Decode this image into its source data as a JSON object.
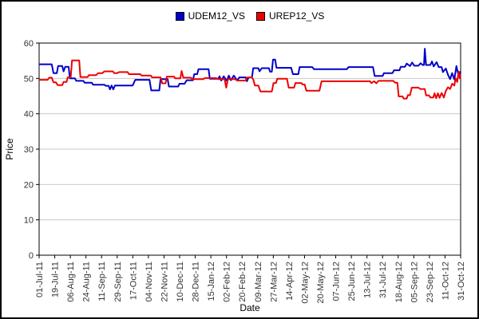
{
  "colors": {
    "series_blue": "#0000CC",
    "series_red": "#EE0000",
    "grid": "#C9C9C9",
    "frame": "#000000",
    "tick_text": "#333333"
  },
  "chart_data": {
    "type": "line",
    "title": "",
    "xlabel": "Date",
    "ylabel": "Price",
    "ylim": [
      0,
      60
    ],
    "yticks": [
      0,
      10,
      20,
      30,
      40,
      50,
      60
    ],
    "grid": "horizontal-light-gray",
    "legend_position": "top-center",
    "categories": [
      "01-Jul-11",
      "19-Jul-11",
      "06-Aug-11",
      "24-Aug-11",
      "11-Sep-11",
      "29-Sep-11",
      "17-Oct-11",
      "04-Nov-11",
      "22-Nov-11",
      "10-Dec-11",
      "28-Dec-11",
      "15-Jan-12",
      "02-Feb-12",
      "20-Feb-12",
      "09-Mar-12",
      "27-Mar-12",
      "14-Apr-12",
      "02-May-12",
      "20-May-12",
      "07-Jun-12",
      "25-Jun-12",
      "13-Jul-12",
      "31-Jul-12",
      "18-Aug-12",
      "05-Sep-12",
      "23-Sep-12",
      "11-Oct-12",
      "31-Oct-12"
    ],
    "x_axis_note": "points below use x as fraction 0-1 of axis span 01-Jul-11 to 31-Oct-12, y in Price units",
    "series": [
      {
        "name": "UDEM12_VS",
        "color": "#0000CC",
        "points": [
          [
            0,
            54
          ],
          [
            0.03,
            54
          ],
          [
            0.034,
            51.5
          ],
          [
            0.042,
            51.5
          ],
          [
            0.045,
            53.5
          ],
          [
            0.055,
            53.5
          ],
          [
            0.058,
            52
          ],
          [
            0.062,
            53.3
          ],
          [
            0.07,
            53.3
          ],
          [
            0.073,
            50
          ],
          [
            0.085,
            50
          ],
          [
            0.088,
            49.3
          ],
          [
            0.105,
            49.3
          ],
          [
            0.108,
            48.8
          ],
          [
            0.125,
            48.8
          ],
          [
            0.128,
            48.2
          ],
          [
            0.155,
            48.2
          ],
          [
            0.158,
            47.9
          ],
          [
            0.165,
            47.9
          ],
          [
            0.168,
            46.9
          ],
          [
            0.172,
            48
          ],
          [
            0.176,
            46.9
          ],
          [
            0.18,
            48
          ],
          [
            0.222,
            48
          ],
          [
            0.228,
            49.6
          ],
          [
            0.262,
            49.6
          ],
          [
            0.266,
            46.6
          ],
          [
            0.285,
            46.6
          ],
          [
            0.288,
            49.8
          ],
          [
            0.305,
            49.8
          ],
          [
            0.308,
            47.7
          ],
          [
            0.33,
            47.7
          ],
          [
            0.333,
            48.5
          ],
          [
            0.345,
            48.5
          ],
          [
            0.35,
            49.5
          ],
          [
            0.365,
            49.5
          ],
          [
            0.368,
            51.2
          ],
          [
            0.375,
            51.2
          ],
          [
            0.378,
            52.6
          ],
          [
            0.402,
            52.6
          ],
          [
            0.405,
            49.9
          ],
          [
            0.425,
            49.9
          ],
          [
            0.428,
            50.6
          ],
          [
            0.432,
            49.4
          ],
          [
            0.438,
            50.6
          ],
          [
            0.445,
            49.3
          ],
          [
            0.45,
            50.8
          ],
          [
            0.455,
            49.5
          ],
          [
            0.462,
            50.8
          ],
          [
            0.47,
            49.4
          ],
          [
            0.475,
            50.3
          ],
          [
            0.49,
            50.3
          ],
          [
            0.493,
            49.2
          ],
          [
            0.497,
            50.3
          ],
          [
            0.505,
            50.3
          ],
          [
            0.508,
            52.9
          ],
          [
            0.52,
            52.9
          ],
          [
            0.523,
            52
          ],
          [
            0.528,
            52.9
          ],
          [
            0.545,
            52.9
          ],
          [
            0.548,
            51.9
          ],
          [
            0.552,
            51.9
          ],
          [
            0.555,
            55.3
          ],
          [
            0.56,
            55.3
          ],
          [
            0.563,
            53
          ],
          [
            0.598,
            53
          ],
          [
            0.602,
            51.2
          ],
          [
            0.615,
            51.2
          ],
          [
            0.618,
            53.2
          ],
          [
            0.648,
            53.2
          ],
          [
            0.652,
            52.6
          ],
          [
            0.73,
            52.6
          ],
          [
            0.734,
            53.2
          ],
          [
            0.792,
            53.2
          ],
          [
            0.796,
            50.7
          ],
          [
            0.815,
            50.7
          ],
          [
            0.818,
            51.5
          ],
          [
            0.838,
            51.5
          ],
          [
            0.842,
            52.3
          ],
          [
            0.855,
            52.3
          ],
          [
            0.858,
            53.3
          ],
          [
            0.868,
            53.3
          ],
          [
            0.872,
            54.2
          ],
          [
            0.88,
            53.5
          ],
          [
            0.885,
            54.5
          ],
          [
            0.89,
            53.6
          ],
          [
            0.9,
            53.6
          ],
          [
            0.905,
            54.3
          ],
          [
            0.91,
            53.8
          ],
          [
            0.913,
            53.8
          ],
          [
            0.915,
            58.4
          ],
          [
            0.918,
            53.8
          ],
          [
            0.928,
            53.8
          ],
          [
            0.932,
            54.8
          ],
          [
            0.936,
            53.4
          ],
          [
            0.943,
            54.6
          ],
          [
            0.948,
            53.2
          ],
          [
            0.955,
            53.2
          ],
          [
            0.958,
            51.8
          ],
          [
            0.965,
            52.8
          ],
          [
            0.97,
            51
          ],
          [
            0.975,
            49.8
          ],
          [
            0.98,
            51.5
          ],
          [
            0.985,
            49.7
          ],
          [
            0.99,
            53.5
          ],
          [
            0.995,
            50.8
          ],
          [
            1,
            52
          ]
        ]
      },
      {
        "name": "UREP12_VS",
        "color": "#EE0000",
        "points": [
          [
            0,
            49.6
          ],
          [
            0.02,
            49.6
          ],
          [
            0.024,
            50.2
          ],
          [
            0.03,
            50.2
          ],
          [
            0.034,
            48.9
          ],
          [
            0.04,
            48.9
          ],
          [
            0.044,
            48.1
          ],
          [
            0.055,
            48.1
          ],
          [
            0.058,
            49
          ],
          [
            0.065,
            49
          ],
          [
            0.068,
            50.3
          ],
          [
            0.075,
            50.3
          ],
          [
            0.078,
            55.1
          ],
          [
            0.095,
            55.1
          ],
          [
            0.098,
            50.4
          ],
          [
            0.115,
            50.4
          ],
          [
            0.118,
            50.9
          ],
          [
            0.135,
            50.9
          ],
          [
            0.14,
            51.5
          ],
          [
            0.15,
            51.5
          ],
          [
            0.155,
            52
          ],
          [
            0.175,
            52
          ],
          [
            0.178,
            51.5
          ],
          [
            0.185,
            51.5
          ],
          [
            0.19,
            51.8
          ],
          [
            0.21,
            51.8
          ],
          [
            0.213,
            51.2
          ],
          [
            0.24,
            51.2
          ],
          [
            0.243,
            50.8
          ],
          [
            0.265,
            50.8
          ],
          [
            0.268,
            50.3
          ],
          [
            0.288,
            50.3
          ],
          [
            0.292,
            48.6
          ],
          [
            0.3,
            48.6
          ],
          [
            0.303,
            50.5
          ],
          [
            0.32,
            50.5
          ],
          [
            0.323,
            50
          ],
          [
            0.335,
            50
          ],
          [
            0.338,
            52.1
          ],
          [
            0.342,
            50.2
          ],
          [
            0.36,
            50.2
          ],
          [
            0.363,
            49.8
          ],
          [
            0.39,
            49.8
          ],
          [
            0.393,
            50.1
          ],
          [
            0.42,
            50.1
          ],
          [
            0.424,
            49.8
          ],
          [
            0.44,
            49.8
          ],
          [
            0.444,
            47.4
          ],
          [
            0.448,
            49.8
          ],
          [
            0.465,
            49.8
          ],
          [
            0.47,
            49.4
          ],
          [
            0.49,
            49.4
          ],
          [
            0.494,
            50.3
          ],
          [
            0.505,
            50.3
          ],
          [
            0.508,
            49.7
          ],
          [
            0.512,
            48
          ],
          [
            0.52,
            48
          ],
          [
            0.525,
            46.3
          ],
          [
            0.552,
            46.3
          ],
          [
            0.556,
            48.7
          ],
          [
            0.562,
            48.7
          ],
          [
            0.565,
            49.9
          ],
          [
            0.588,
            49.9
          ],
          [
            0.592,
            47.4
          ],
          [
            0.605,
            47.4
          ],
          [
            0.608,
            48.7
          ],
          [
            0.622,
            48.7
          ],
          [
            0.625,
            48.3
          ],
          [
            0.63,
            48.3
          ],
          [
            0.634,
            46.5
          ],
          [
            0.665,
            46.5
          ],
          [
            0.67,
            49.2
          ],
          [
            0.785,
            49.2
          ],
          [
            0.788,
            48.7
          ],
          [
            0.795,
            49.2
          ],
          [
            0.8,
            48.6
          ],
          [
            0.805,
            49.3
          ],
          [
            0.84,
            49.3
          ],
          [
            0.845,
            48.8
          ],
          [
            0.85,
            48.8
          ],
          [
            0.853,
            44.9
          ],
          [
            0.862,
            44.9
          ],
          [
            0.865,
            44.3
          ],
          [
            0.872,
            44.3
          ],
          [
            0.875,
            45.3
          ],
          [
            0.88,
            45.3
          ],
          [
            0.884,
            47.4
          ],
          [
            0.9,
            47.4
          ],
          [
            0.904,
            47
          ],
          [
            0.915,
            47
          ],
          [
            0.918,
            45.2
          ],
          [
            0.925,
            45.2
          ],
          [
            0.928,
            44.6
          ],
          [
            0.935,
            44.6
          ],
          [
            0.938,
            45.8
          ],
          [
            0.942,
            44.4
          ],
          [
            0.946,
            45.8
          ],
          [
            0.95,
            44.5
          ],
          [
            0.955,
            45.9
          ],
          [
            0.96,
            44.6
          ],
          [
            0.965,
            46.5
          ],
          [
            0.97,
            47.5
          ],
          [
            0.975,
            47
          ],
          [
            0.98,
            48.5
          ],
          [
            0.985,
            48
          ],
          [
            0.988,
            50
          ],
          [
            0.992,
            49
          ],
          [
            0.995,
            52
          ],
          [
            0.998,
            50
          ],
          [
            1,
            50.8
          ]
        ]
      }
    ]
  }
}
